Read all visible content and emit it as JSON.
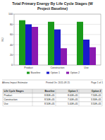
{
  "chart_data": {
    "type": "bar",
    "title": [
      "Total Primary Energy By Life Cycle Stages (W",
      "Project Baseline)"
    ],
    "y_label": "MJ",
    "categories": [
      "Product",
      "Construction",
      "Use"
    ],
    "series": [
      {
        "name": "Baseline",
        "color": "#1a9a1a",
        "values": [
          88,
          85,
          85
        ]
      },
      {
        "name": "Option 1",
        "color": "#1a1acc",
        "values": [
          80,
          70,
          50
        ]
      },
      {
        "name": "Option 2",
        "color": "#8a1ab0",
        "values": [
          75,
          33,
          35
        ]
      }
    ],
    "ylim": [
      0,
      100
    ],
    "yticks": [
      0,
      20,
      40,
      60,
      80,
      100
    ],
    "grid": true,
    "legend": "bottom"
  },
  "footer": {
    "left": "Athena Impact Estimator",
    "center": "Printed On: 2011-09-15",
    "right": "Page 1 of 1"
  },
  "table": {
    "header": [
      "Life Cycle Stages",
      "Baseline",
      "Option 1",
      "Option 2"
    ],
    "rows": [
      [
        "Product",
        "8.80E+05",
        "8.00E+05",
        "7.50E+05"
      ],
      [
        "Construction",
        "8.50E+05",
        "7.00E+05",
        "3.30E+05"
      ],
      [
        "Use",
        "8.50E+05",
        "5.00E+05",
        "3.50E+05"
      ]
    ]
  }
}
